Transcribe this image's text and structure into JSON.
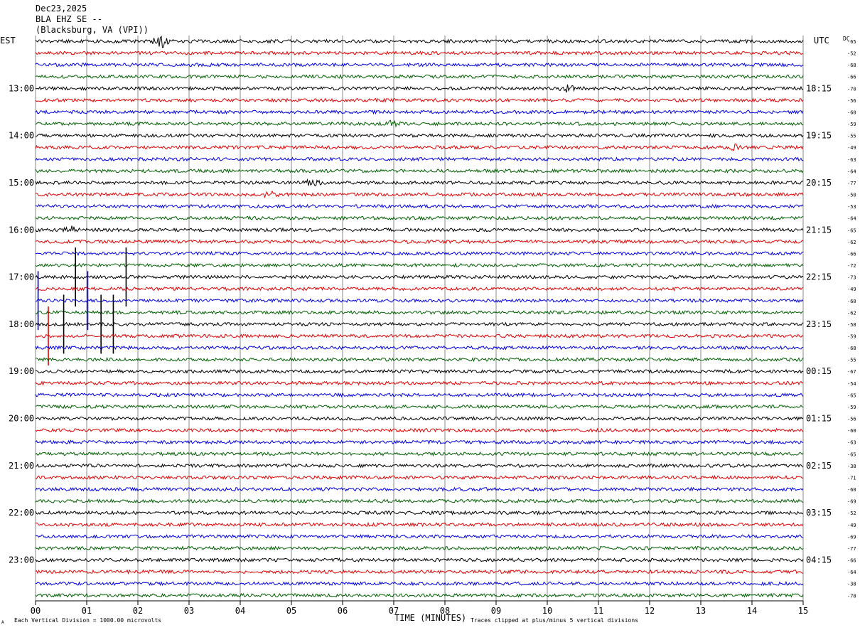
{
  "header": {
    "date": "Dec23,2025",
    "station": "BLA EHZ SE --",
    "location": "(Blacksburg, VA (VPI))"
  },
  "labels": {
    "left_tz": "EST",
    "right_tz": "UTC",
    "dc": "DC",
    "x_title": "TIME (MINUTES)",
    "footer_left": "Each Vertical Division = 1000.00 microvolts",
    "footer_right": "Traces clipped at plus/minus 5 vertical divisions",
    "corner_mark": "A"
  },
  "colors": {
    "trace_cycle": [
      "#000000",
      "#e00000",
      "#0000e0",
      "#006000"
    ],
    "grid": "#888888"
  },
  "chart_data": {
    "type": "line",
    "title": "Dec23,2025 BLA EHZ SE -- (Blacksburg, VA (VPI))",
    "xlabel": "TIME (MINUTES)",
    "xlim": [
      0,
      15
    ],
    "x_ticks": [
      "00",
      "01",
      "02",
      "03",
      "04",
      "05",
      "06",
      "07",
      "08",
      "09",
      "10",
      "11",
      "12",
      "13",
      "14",
      "15"
    ],
    "rows_per_hour": 4,
    "left_hour_labels": [
      "13:00",
      "14:00",
      "15:00",
      "16:00",
      "17:00",
      "18:00",
      "19:00",
      "20:00",
      "21:00",
      "22:00",
      "23:00"
    ],
    "right_hour_labels": [
      "18:15",
      "19:15",
      "20:15",
      "21:15",
      "22:15",
      "23:15",
      "00:15",
      "01:15",
      "02:15",
      "03:15",
      "04:15"
    ],
    "dc_offsets": [
      -65,
      -52,
      -68,
      -66,
      -70,
      -56,
      -60,
      -59,
      -55,
      -49,
      -63,
      -64,
      -77,
      -50,
      -53,
      -64,
      -65,
      -62,
      -66,
      -72,
      -73,
      -49,
      -60,
      -62,
      -58,
      -59,
      -68,
      -55,
      -67,
      -54,
      -65,
      -59,
      -56,
      -60,
      -63,
      -65,
      -38,
      -71,
      -60,
      -69,
      -52,
      -49,
      -69,
      -77,
      -66,
      -64,
      -38,
      -78
    ],
    "events": [
      {
        "row": 0,
        "minute": 2.45,
        "type": "burst"
      },
      {
        "row": 4,
        "minute": 10.4,
        "type": "burst"
      },
      {
        "row": 7,
        "minute": 7.0,
        "type": "burst"
      },
      {
        "row": 9,
        "minute": 13.7,
        "type": "burst"
      },
      {
        "row": 12,
        "minute": 5.4,
        "type": "burst"
      },
      {
        "row": 13,
        "minute": 4.6,
        "type": "burst"
      },
      {
        "row": 16,
        "minute": 0.7,
        "type": "burst"
      },
      {
        "row": 20,
        "minute": 0.78,
        "type": "spike"
      },
      {
        "row": 20,
        "minute": 1.77,
        "type": "spike"
      },
      {
        "row": 22,
        "minute": 0.05,
        "type": "spike"
      },
      {
        "row": 22,
        "minute": 1.02,
        "type": "spike"
      },
      {
        "row": 24,
        "minute": 0.55,
        "type": "spike"
      },
      {
        "row": 24,
        "minute": 1.28,
        "type": "spike"
      },
      {
        "row": 24,
        "minute": 1.52,
        "type": "spike"
      },
      {
        "row": 25,
        "minute": 0.25,
        "type": "spike"
      }
    ]
  }
}
